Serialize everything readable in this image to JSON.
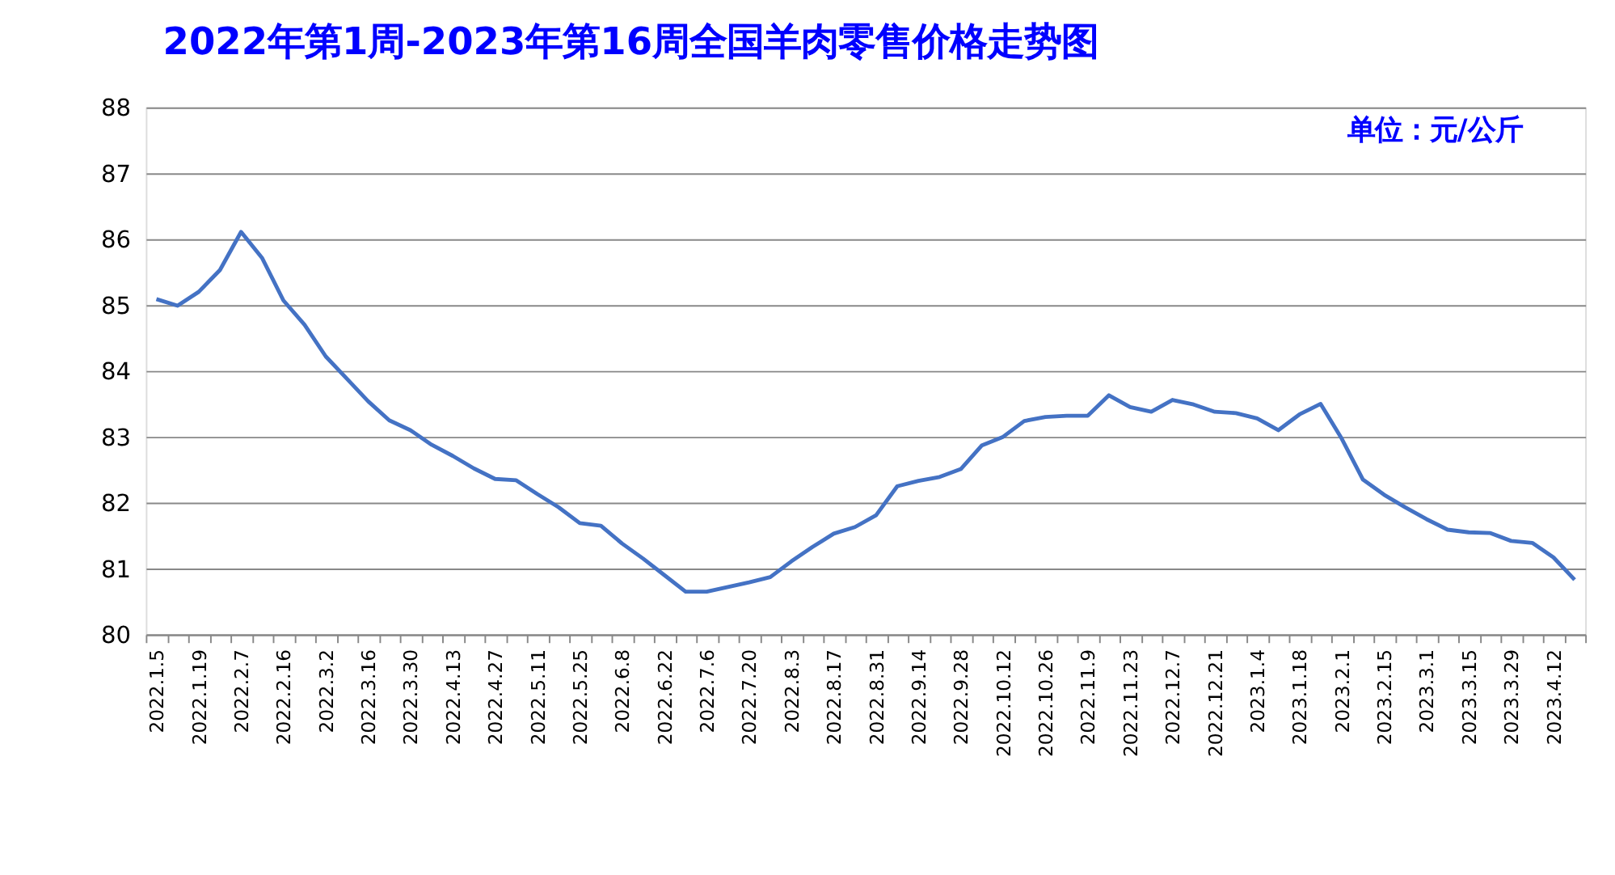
{
  "chart_data": {
    "type": "line",
    "title": "2022年第1周-2023年第16周全国羊肉零售价格走势图",
    "annotations": [
      "单位：元/公斤"
    ],
    "categories": [
      "2022.1.5",
      null,
      "2022.1.19",
      null,
      "2022.2.7",
      null,
      "2022.2.16",
      null,
      "2022.3.2",
      null,
      "2022.3.16",
      null,
      "2022.3.30",
      null,
      "2022.4.13",
      null,
      "2022.4.27",
      null,
      "2022.5.11",
      null,
      "2022.5.25",
      null,
      "2022.6.8",
      null,
      "2022.6.22",
      null,
      "2022.7.6",
      null,
      "2022.7.20",
      null,
      "2022.8.3",
      null,
      "2022.8.17",
      null,
      "2022.8.31",
      null,
      "2022.9.14",
      null,
      "2022.9.28",
      null,
      "2022.10.12",
      null,
      "2022.10.26",
      null,
      "2022.11.9",
      null,
      "2022.11.23",
      null,
      "2022.12.7",
      null,
      "2022.12.21",
      null,
      "2023.1.4",
      null,
      "2023.1.18",
      null,
      "2023.2.1",
      null,
      "2023.2.15",
      null,
      "2023.3.1",
      null,
      "2023.3.15",
      null,
      "2023.3.29",
      null,
      "2023.4.12",
      null
    ],
    "series": [
      {
        "color": "#4472c4",
        "values": [
          85.09,
          84.99,
          85.2,
          85.53,
          86.11,
          85.71,
          85.07,
          84.7,
          84.22,
          83.88,
          83.54,
          83.25,
          83.1,
          82.88,
          82.71,
          82.52,
          82.36,
          82.34,
          82.13,
          81.93,
          81.69,
          81.65,
          81.38,
          81.15,
          80.9,
          80.65,
          80.65,
          80.72,
          80.79,
          80.87,
          81.11,
          81.33,
          81.53,
          81.63,
          81.81,
          82.25,
          82.33,
          82.39,
          82.51,
          82.87,
          83.0,
          83.24,
          83.3,
          83.32,
          83.32,
          83.63,
          83.45,
          83.38,
          83.56,
          83.49,
          83.38,
          83.36,
          83.28,
          83.1,
          83.34,
          83.5,
          82.97,
          82.35,
          82.12,
          81.93,
          81.75,
          81.59,
          81.55,
          81.54,
          81.42,
          81.39,
          81.17,
          80.83
        ]
      }
    ],
    "ylim": [
      80,
      88
    ],
    "yticks": [
      80,
      81,
      82,
      83,
      84,
      85,
      86,
      87,
      88
    ],
    "grid": "y",
    "marker": "none",
    "line_style": "solid"
  }
}
